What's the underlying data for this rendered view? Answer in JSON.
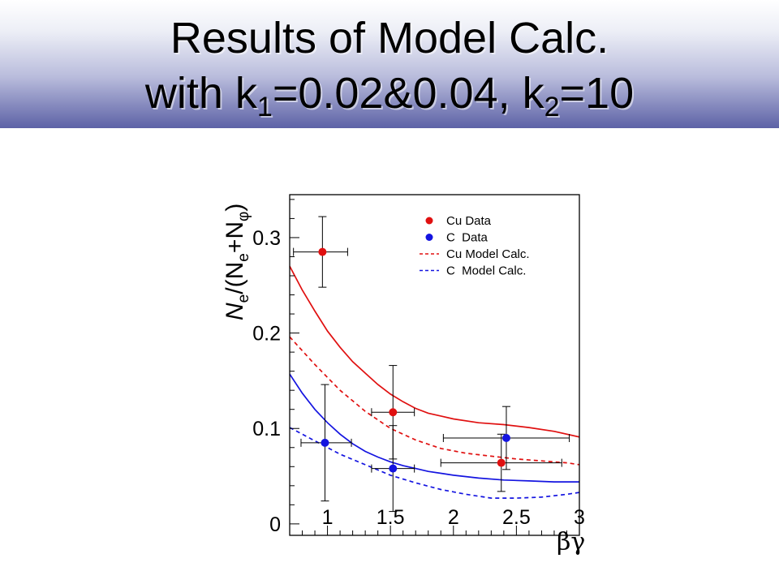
{
  "slide": {
    "title_line1": "Results of Model Calc.",
    "title_line2_a": "with k",
    "title_line2_sub1": "1",
    "title_line2_b": "=0.02&0.04, k",
    "title_line2_sub2": "2",
    "title_line2_c": "=10"
  },
  "colors": {
    "cu": "#e01010",
    "c": "#1414e0",
    "axis": "#000000",
    "title_gradient_bottom": "#5d62a6"
  },
  "chart_data": {
    "type": "scatter",
    "xlabel": "βγ",
    "ylabel_parts": {
      "n1": "N",
      "sub1": "e",
      "mid": "/(N",
      "sub2": "e",
      "plus": "+N",
      "sub3": "φ",
      "close": ")"
    },
    "xlim": [
      0.7,
      3.0
    ],
    "ylim": [
      -0.012,
      0.345
    ],
    "x_ticks": [
      1,
      1.5,
      2,
      2.5,
      3
    ],
    "x_tick_labels": [
      "1",
      "1.5",
      "2",
      "2.5",
      "3"
    ],
    "y_ticks": [
      0,
      0.1,
      0.2,
      0.3
    ],
    "y_tick_labels": [
      "0",
      "0.1",
      "0.2",
      "0.3"
    ],
    "grid": false,
    "legend_position": "top-right",
    "legend": [
      {
        "label": "Cu Data",
        "kind": "marker",
        "color": "#e01010"
      },
      {
        "label": "C  Data",
        "kind": "marker",
        "color": "#1414e0"
      },
      {
        "label": "Cu Model Calc.",
        "kind": "dashed",
        "color": "#e01010"
      },
      {
        "label": "C  Model Calc.",
        "kind": "dashed",
        "color": "#1414e0"
      }
    ],
    "series": [
      {
        "name": "Cu Data",
        "kind": "points",
        "color": "#e01010",
        "points": [
          {
            "x": 0.96,
            "y": 0.285,
            "xerr": [
              0.23,
              0.2
            ],
            "yerr": [
              0.037,
              0.037
            ]
          },
          {
            "x": 1.52,
            "y": 0.117,
            "xerr": [
              0.17,
              0.17
            ],
            "yerr": [
              0.049,
              0.049
            ]
          },
          {
            "x": 2.38,
            "y": 0.064,
            "xerr": [
              0.48,
              0.48
            ],
            "yerr": [
              0.03,
              0.03
            ]
          }
        ]
      },
      {
        "name": "C  Data",
        "kind": "points",
        "color": "#1414e0",
        "points": [
          {
            "x": 0.98,
            "y": 0.085,
            "xerr": [
              0.19,
              0.21
            ],
            "yerr": [
              0.061,
              0.061
            ]
          },
          {
            "x": 1.52,
            "y": 0.058,
            "xerr": [
              0.17,
              0.17
            ],
            "yerr": [
              0.045,
              0.045
            ]
          },
          {
            "x": 2.42,
            "y": 0.09,
            "xerr": [
              0.5,
              0.5
            ],
            "yerr": [
              0.033,
              0.033
            ]
          }
        ]
      },
      {
        "name": "Cu Model Calc.",
        "kind": "dashed",
        "color": "#e01010",
        "x": [
          0.7,
          0.9,
          1.1,
          1.3,
          1.5,
          1.7,
          1.9,
          2.1,
          2.3,
          2.5,
          2.7,
          2.9,
          3.0
        ],
        "y": [
          0.196,
          0.167,
          0.14,
          0.118,
          0.1,
          0.088,
          0.079,
          0.074,
          0.071,
          0.068,
          0.066,
          0.064,
          0.062
        ]
      },
      {
        "name": "C  Model Calc.",
        "kind": "dashed",
        "color": "#1414e0",
        "x": [
          0.7,
          0.9,
          1.1,
          1.3,
          1.5,
          1.7,
          1.9,
          2.1,
          2.3,
          2.5,
          2.7,
          2.9,
          3.0
        ],
        "y": [
          0.101,
          0.087,
          0.073,
          0.062,
          0.051,
          0.043,
          0.036,
          0.031,
          0.027,
          0.027,
          0.028,
          0.031,
          0.033
        ]
      },
      {
        "kind": "solid",
        "color": "#e01010",
        "x": [
          0.7,
          0.8,
          0.9,
          1.0,
          1.1,
          1.2,
          1.3,
          1.4,
          1.5,
          1.6,
          1.7,
          1.8,
          1.9,
          2.0,
          2.2,
          2.4,
          2.6,
          2.8,
          3.0
        ],
        "y": [
          0.27,
          0.245,
          0.223,
          0.202,
          0.185,
          0.17,
          0.158,
          0.146,
          0.136,
          0.128,
          0.121,
          0.116,
          0.113,
          0.11,
          0.106,
          0.104,
          0.101,
          0.097,
          0.091
        ]
      },
      {
        "kind": "solid",
        "color": "#1414e0",
        "x": [
          0.7,
          0.8,
          0.9,
          1.0,
          1.1,
          1.2,
          1.3,
          1.4,
          1.5,
          1.6,
          1.7,
          1.8,
          1.9,
          2.0,
          2.2,
          2.4,
          2.6,
          2.8,
          3.0
        ],
        "y": [
          0.157,
          0.137,
          0.12,
          0.106,
          0.094,
          0.084,
          0.076,
          0.07,
          0.065,
          0.061,
          0.058,
          0.055,
          0.053,
          0.051,
          0.048,
          0.046,
          0.045,
          0.044,
          0.044
        ]
      }
    ]
  }
}
